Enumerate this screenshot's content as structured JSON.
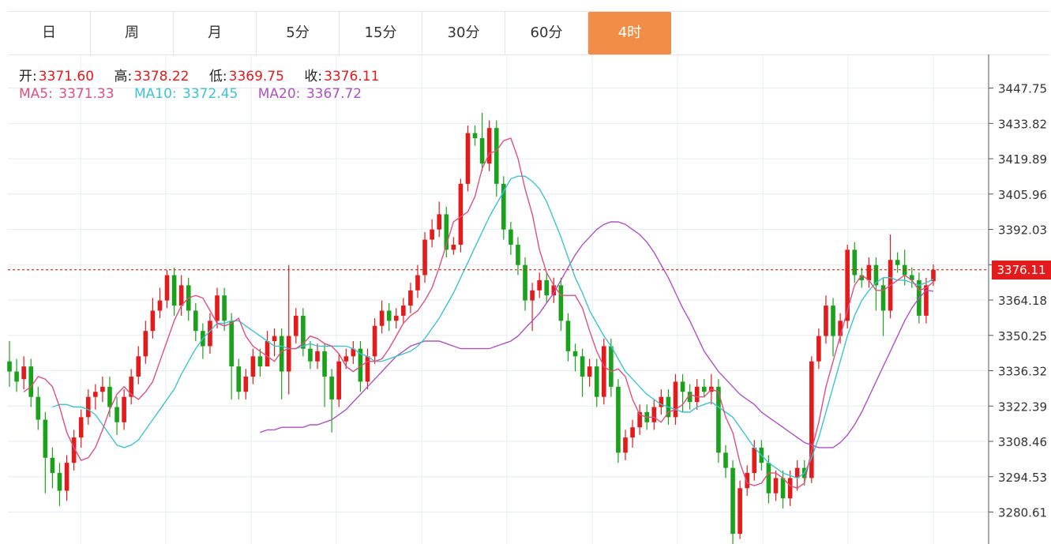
{
  "tabs": [
    {
      "label": "日",
      "active": false
    },
    {
      "label": "周",
      "active": false
    },
    {
      "label": "月",
      "active": false
    },
    {
      "label": "5分",
      "active": false
    },
    {
      "label": "15分",
      "active": false
    },
    {
      "label": "30分",
      "active": false
    },
    {
      "label": "60分",
      "active": false
    },
    {
      "label": "4时",
      "active": true
    }
  ],
  "ohlc_header": {
    "open_label": "开:",
    "open": "3371.60",
    "high_label": "高:",
    "high": "3378.22",
    "low_label": "低:",
    "low": "3369.75",
    "close_label": "收:",
    "close": "3376.11"
  },
  "ma_header": {
    "ma5_label": "MA5:",
    "ma5": "3371.33",
    "ma10_label": "MA10:",
    "ma10": "3372.45",
    "ma20_label": "MA20:",
    "ma20": "3367.72"
  },
  "current_price_tag": "3376.11",
  "colors": {
    "up": "#e31b1b",
    "down": "#1aa31a",
    "ma5": "#e0507f",
    "ma10": "#3cc4d4",
    "ma20": "#b150c5",
    "active_tab": "#f28d47",
    "grid": "#e4eef5"
  },
  "chart_data": {
    "type": "candlestick",
    "y_ticks": [
      3280.61,
      3294.53,
      3308.46,
      3322.39,
      3336.32,
      3350.25,
      3364.18,
      3378.1,
      3392.03,
      3405.96,
      3419.89,
      3433.82,
      3447.75
    ],
    "y_tick_labels": [
      "3280.61",
      "3294.53",
      "3308.46",
      "3322.39",
      "3336.32",
      "3350.25",
      "3364.18",
      "",
      "3392.03",
      "3405.96",
      "3419.89",
      "3433.82",
      "3447.75"
    ],
    "ylim": [
      3268,
      3461
    ],
    "current_price": 3376.11,
    "candles": [
      [
        3340,
        3336,
        3348,
        3330
      ],
      [
        3336,
        3332,
        3341,
        3328
      ],
      [
        3333,
        3338,
        3342,
        3329
      ],
      [
        3338,
        3326,
        3341,
        3322
      ],
      [
        3326,
        3317,
        3330,
        3313
      ],
      [
        3317,
        3302,
        3320,
        3288
      ],
      [
        3302,
        3296,
        3306,
        3290
      ],
      [
        3296,
        3289,
        3300,
        3283
      ],
      [
        3289,
        3300,
        3303,
        3285
      ],
      [
        3300,
        3310,
        3313,
        3297
      ],
      [
        3310,
        3318,
        3321,
        3306
      ],
      [
        3318,
        3326,
        3329,
        3315
      ],
      [
        3326,
        3328,
        3331,
        3321
      ],
      [
        3328,
        3330,
        3334,
        3324
      ],
      [
        3330,
        3322,
        3334,
        3318
      ],
      [
        3322,
        3316,
        3326,
        3311
      ],
      [
        3316,
        3326,
        3329,
        3313
      ],
      [
        3326,
        3334,
        3337,
        3323
      ],
      [
        3334,
        3342,
        3346,
        3331
      ],
      [
        3342,
        3352,
        3356,
        3339
      ],
      [
        3352,
        3360,
        3365,
        3349
      ],
      [
        3360,
        3364,
        3369,
        3357
      ],
      [
        3364,
        3374,
        3376,
        3361
      ],
      [
        3374,
        3362,
        3377,
        3358
      ],
      [
        3362,
        3370,
        3374,
        3358
      ],
      [
        3370,
        3360,
        3373,
        3356
      ],
      [
        3360,
        3352,
        3363,
        3348
      ],
      [
        3352,
        3346,
        3355,
        3341
      ],
      [
        3346,
        3356,
        3359,
        3343
      ],
      [
        3356,
        3366,
        3369,
        3353
      ],
      [
        3366,
        3356,
        3369,
        3352
      ],
      [
        3356,
        3338,
        3359,
        3325
      ],
      [
        3338,
        3328,
        3341,
        3325
      ],
      [
        3328,
        3334,
        3337,
        3325
      ],
      [
        3334,
        3342,
        3345,
        3331
      ],
      [
        3342,
        3338,
        3345,
        3334
      ],
      [
        3338,
        3348,
        3352,
        3345
      ],
      [
        3348,
        3350,
        3353,
        3342
      ],
      [
        3350,
        3336,
        3353,
        3325
      ],
      [
        3336,
        3350,
        3378,
        3327
      ],
      [
        3350,
        3358,
        3361,
        3347
      ],
      [
        3358,
        3345,
        3361,
        3342
      ],
      [
        3345,
        3340,
        3348,
        3337
      ],
      [
        3340,
        3344,
        3347,
        3337
      ],
      [
        3344,
        3334,
        3347,
        3322
      ],
      [
        3334,
        3325,
        3337,
        3312
      ],
      [
        3325,
        3340,
        3343,
        3322
      ],
      [
        3340,
        3342,
        3345,
        3337
      ],
      [
        3342,
        3345,
        3348,
        3339
      ],
      [
        3345,
        3332,
        3348,
        3328
      ],
      [
        3332,
        3342,
        3345,
        3329
      ],
      [
        3342,
        3354,
        3357,
        3339
      ],
      [
        3354,
        3360,
        3364,
        3351
      ],
      [
        3360,
        3356,
        3363,
        3352
      ],
      [
        3356,
        3358,
        3361,
        3353
      ],
      [
        3358,
        3362,
        3365,
        3355
      ],
      [
        3362,
        3368,
        3371,
        3359
      ],
      [
        3368,
        3374,
        3378,
        3365
      ],
      [
        3374,
        3388,
        3391,
        3371
      ],
      [
        3388,
        3392,
        3396,
        3385
      ],
      [
        3392,
        3398,
        3403,
        3389
      ],
      [
        3398,
        3384,
        3401,
        3381
      ],
      [
        3384,
        3386,
        3389,
        3382
      ],
      [
        3386,
        3410,
        3412,
        3383
      ],
      [
        3410,
        3430,
        3433,
        3407
      ],
      [
        3430,
        3428,
        3433,
        3425
      ],
      [
        3428,
        3418,
        3438,
        3415
      ],
      [
        3418,
        3432,
        3435,
        3415
      ],
      [
        3432,
        3410,
        3435,
        3405
      ],
      [
        3410,
        3392,
        3413,
        3388
      ],
      [
        3392,
        3386,
        3395,
        3382
      ],
      [
        3386,
        3378,
        3389,
        3374
      ],
      [
        3378,
        3364,
        3381,
        3360
      ],
      [
        3364,
        3368,
        3371,
        3352
      ],
      [
        3368,
        3372,
        3375,
        3365
      ],
      [
        3372,
        3366,
        3375,
        3363
      ],
      [
        3366,
        3370,
        3373,
        3363
      ],
      [
        3370,
        3356,
        3373,
        3352
      ],
      [
        3356,
        3344,
        3359,
        3340
      ],
      [
        3344,
        3342,
        3347,
        3336
      ],
      [
        3342,
        3334,
        3345,
        3326
      ],
      [
        3334,
        3338,
        3341,
        3330
      ],
      [
        3338,
        3326,
        3341,
        3322
      ],
      [
        3326,
        3346,
        3349,
        3323
      ],
      [
        3346,
        3330,
        3349,
        3326
      ],
      [
        3330,
        3304,
        3333,
        3300
      ],
      [
        3304,
        3310,
        3313,
        3301
      ],
      [
        3310,
        3314,
        3317,
        3306
      ],
      [
        3314,
        3320,
        3323,
        3311
      ],
      [
        3320,
        3316,
        3323,
        3313
      ],
      [
        3316,
        3322,
        3325,
        3313
      ],
      [
        3322,
        3326,
        3329,
        3319
      ],
      [
        3326,
        3318,
        3329,
        3315
      ],
      [
        3318,
        3332,
        3335,
        3315
      ],
      [
        3332,
        3328,
        3335,
        3320
      ],
      [
        3328,
        3324,
        3331,
        3321
      ],
      [
        3324,
        3330,
        3333,
        3321
      ],
      [
        3330,
        3328,
        3333,
        3326
      ],
      [
        3328,
        3330,
        3335,
        3323
      ],
      [
        3330,
        3304,
        3333,
        3300
      ],
      [
        3304,
        3298,
        3307,
        3294
      ],
      [
        3298,
        3272,
        3301,
        3268
      ],
      [
        3272,
        3290,
        3293,
        3270
      ],
      [
        3290,
        3296,
        3299,
        3287
      ],
      [
        3296,
        3306,
        3309,
        3293
      ],
      [
        3306,
        3300,
        3309,
        3297
      ],
      [
        3300,
        3288,
        3303,
        3284
      ],
      [
        3288,
        3294,
        3297,
        3285
      ],
      [
        3294,
        3286,
        3297,
        3282
      ],
      [
        3286,
        3294,
        3297,
        3283
      ],
      [
        3294,
        3298,
        3301,
        3289
      ],
      [
        3298,
        3294,
        3301,
        3291
      ],
      [
        3294,
        3340,
        3342,
        3292
      ],
      [
        3340,
        3350,
        3353,
        3337
      ],
      [
        3350,
        3362,
        3366,
        3347
      ],
      [
        3362,
        3350,
        3365,
        3342
      ],
      [
        3350,
        3356,
        3359,
        3347
      ],
      [
        3356,
        3384,
        3386,
        3353
      ],
      [
        3384,
        3374,
        3387,
        3371
      ],
      [
        3374,
        3372,
        3377,
        3369
      ],
      [
        3372,
        3378,
        3381,
        3369
      ],
      [
        3378,
        3370,
        3381,
        3360
      ],
      [
        3370,
        3360,
        3373,
        3350
      ],
      [
        3360,
        3380,
        3390,
        3357
      ],
      [
        3380,
        3378,
        3383,
        3375
      ],
      [
        3378,
        3374,
        3384,
        3370
      ],
      [
        3374,
        3372,
        3377,
        3369
      ],
      [
        3372,
        3358,
        3375,
        3355
      ],
      [
        3358,
        3370,
        3373,
        3355
      ],
      [
        3371.6,
        3376.11,
        3378.22,
        3369.75
      ]
    ],
    "ma5": [
      3328,
      3330,
      3334,
      3333,
      3330,
      3322,
      3312,
      3306,
      3301,
      3302,
      3306,
      3313,
      3321,
      3327,
      3330,
      3327,
      3325,
      3328,
      3332,
      3340,
      3348,
      3356,
      3362,
      3365,
      3366,
      3365,
      3360,
      3355,
      3354,
      3355,
      3357,
      3350,
      3346,
      3344,
      3342,
      3340,
      3344,
      3345,
      3345,
      3347,
      3350,
      3349,
      3347,
      3346,
      3343,
      3338,
      3336,
      3338,
      3340,
      3340,
      3341,
      3345,
      3350,
      3355,
      3358,
      3360,
      3364,
      3369,
      3377,
      3386,
      3395,
      3397,
      3399,
      3405,
      3416,
      3422,
      3423,
      3427,
      3428,
      3420,
      3408,
      3398,
      3384,
      3375,
      3370,
      3366,
      3366,
      3366,
      3361,
      3352,
      3344,
      3338,
      3336,
      3337,
      3334,
      3325,
      3319,
      3318,
      3318,
      3316,
      3320,
      3321,
      3323,
      3327,
      3326,
      3326,
      3329,
      3328,
      3318,
      3312,
      3300,
      3292,
      3291,
      3292,
      3296,
      3296,
      3294,
      3291,
      3290,
      3292,
      3305,
      3316,
      3330,
      3340,
      3350,
      3360,
      3370,
      3374,
      3372,
      3368,
      3368,
      3370,
      3372,
      3374,
      3372,
      3368,
      3369,
      3371.33
    ],
    "ma10": [
      3322,
      3323,
      3323,
      3322,
      3322,
      3321,
      3319,
      3315,
      3311,
      3307,
      3306,
      3307,
      3309,
      3313,
      3317,
      3321,
      3325,
      3329,
      3335,
      3340,
      3345,
      3349,
      3352,
      3355,
      3355,
      3356,
      3356,
      3354,
      3352,
      3350,
      3348,
      3346,
      3346,
      3345,
      3345,
      3346,
      3347,
      3346,
      3346,
      3346,
      3346,
      3346,
      3345,
      3343,
      3342,
      3340,
      3340,
      3341,
      3342,
      3343,
      3344,
      3346,
      3349,
      3353,
      3357,
      3362,
      3367,
      3373,
      3379,
      3385,
      3391,
      3397,
      3402,
      3407,
      3412,
      3413,
      3413,
      3411,
      3408,
      3403,
      3396,
      3389,
      3381,
      3373,
      3367,
      3360,
      3355,
      3350,
      3346,
      3341,
      3336,
      3333,
      3330,
      3327,
      3325,
      3323,
      3322,
      3321,
      3320,
      3320,
      3322,
      3323,
      3324,
      3322,
      3320,
      3318,
      3314,
      3310,
      3306,
      3303,
      3300,
      3298,
      3296,
      3295,
      3294,
      3296,
      3302,
      3310,
      3320,
      3330,
      3340,
      3350,
      3358,
      3364,
      3368,
      3371,
      3373,
      3373,
      3372,
      3372,
      3371,
      3370,
      3371,
      3372.45
    ],
    "ma20": [
      3312,
      3313,
      3313,
      3314,
      3314,
      3314,
      3314,
      3315,
      3315,
      3316,
      3317,
      3319,
      3321,
      3324,
      3327,
      3330,
      3333,
      3336,
      3339,
      3342,
      3344,
      3346,
      3347,
      3348,
      3348,
      3348,
      3347,
      3346,
      3345,
      3345,
      3345,
      3345,
      3345,
      3346,
      3347,
      3348,
      3350,
      3353,
      3356,
      3359,
      3363,
      3367,
      3372,
      3377,
      3382,
      3386,
      3389,
      3392,
      3394,
      3395,
      3395,
      3394,
      3392,
      3390,
      3387,
      3383,
      3378,
      3373,
      3367,
      3361,
      3356,
      3350,
      3344,
      3340,
      3336,
      3333,
      3330,
      3327,
      3325,
      3323,
      3320,
      3318,
      3316,
      3314,
      3312,
      3310,
      3308,
      3307,
      3306,
      3306,
      3306,
      3308,
      3311,
      3315,
      3320,
      3326,
      3332,
      3338,
      3344,
      3350,
      3356,
      3361,
      3365,
      3368,
      3367.72
    ]
  }
}
